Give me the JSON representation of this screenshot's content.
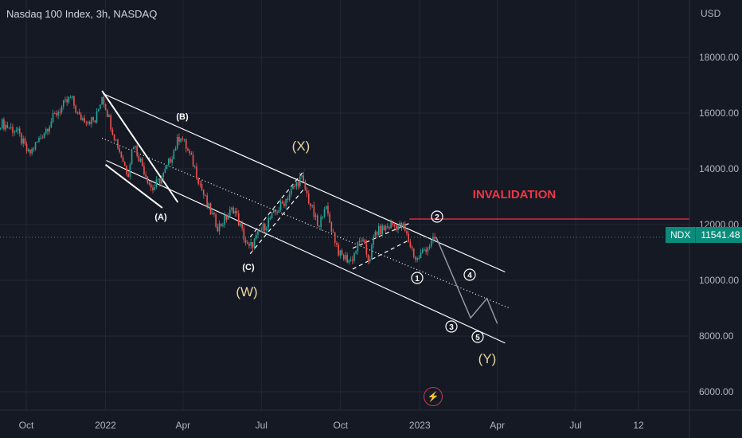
{
  "header": {
    "title": "Nasdaq 100 Index, 3h, NASDAQ",
    "currency": "USD"
  },
  "price_tag": {
    "symbol": "NDX",
    "value": "11541.48"
  },
  "colors": {
    "background": "#151924",
    "up": "#26a69a",
    "down": "#ef5350",
    "channel": "#ffffff",
    "invalidation": "#f23645",
    "wave_label_major": "#e6d3a0",
    "tag": "#0b8c7a"
  },
  "icons": {
    "bottom_badge": "lightning-icon"
  },
  "chart_data": {
    "type": "line",
    "title": "Nasdaq 100 Index, 3h, NASDAQ",
    "xlabel": "",
    "ylabel": "",
    "ylim": [
      5400,
      20400
    ],
    "grid": true,
    "y_ticks": [
      "6000.00",
      "8000.00",
      "10000.00",
      "12000.00",
      "14000.00",
      "16000.00",
      "18000.00"
    ],
    "x_ticks": [
      {
        "label": "Oct",
        "x": "2021-10-01"
      },
      {
        "label": "2022",
        "x": "2022-01-01"
      },
      {
        "label": "Apr",
        "x": "2022-04-01"
      },
      {
        "label": "Jul",
        "x": "2022-07-01"
      },
      {
        "label": "Oct",
        "x": "2022-10-01"
      },
      {
        "label": "2023",
        "x": "2023-01-01"
      },
      {
        "label": "Apr",
        "x": "2023-04-01"
      },
      {
        "label": "Jul",
        "x": "2023-07-01"
      },
      {
        "label": "12",
        "x": "2023-09-12"
      }
    ],
    "series": [
      {
        "points": [
          [
            "2021-09-01",
            15650
          ],
          [
            "2021-09-20",
            15350
          ],
          [
            "2021-10-04",
            14500
          ],
          [
            "2021-10-20",
            15250
          ],
          [
            "2021-11-05",
            16000
          ],
          [
            "2021-11-22",
            16550
          ],
          [
            "2021-12-01",
            15850
          ],
          [
            "2021-12-20",
            15700
          ],
          [
            "2021-12-28",
            16650
          ],
          [
            "2022-01-10",
            15300
          ],
          [
            "2022-01-27",
            13800
          ],
          [
            "2022-02-02",
            14950
          ],
          [
            "2022-02-24",
            13250
          ],
          [
            "2022-03-10",
            13800
          ],
          [
            "2022-03-29",
            15250
          ],
          [
            "2022-04-14",
            14100
          ],
          [
            "2022-04-29",
            12700
          ],
          [
            "2022-05-12",
            11900
          ],
          [
            "2022-05-30",
            12600
          ],
          [
            "2022-06-16",
            11100
          ],
          [
            "2022-07-08",
            12100
          ],
          [
            "2022-07-27",
            12800
          ],
          [
            "2022-08-16",
            13700
          ],
          [
            "2022-09-06",
            11800
          ],
          [
            "2022-09-12",
            12750
          ],
          [
            "2022-09-30",
            10900
          ],
          [
            "2022-10-13",
            10700
          ],
          [
            "2022-10-25",
            11500
          ],
          [
            "2022-11-03",
            10700
          ],
          [
            "2022-11-10",
            11700
          ],
          [
            "2022-11-30",
            12000
          ],
          [
            "2022-12-13",
            11900
          ],
          [
            "2022-12-28",
            10700
          ],
          [
            "2023-01-06",
            11100
          ],
          [
            "2023-01-20",
            11500
          ]
        ]
      }
    ],
    "projection": [
      [
        "2023-01-20",
        11550
      ],
      [
        "2023-03-01",
        8650
      ],
      [
        "2023-03-20",
        9350
      ],
      [
        "2023-04-01",
        8450
      ]
    ],
    "invalidation_level": 12200,
    "last_price": 11541.48,
    "annotations": [
      {
        "text": "INVALIDATION"
      },
      {
        "text": "(A)"
      },
      {
        "text": "(B)"
      },
      {
        "text": "(C)"
      },
      {
        "text": "(W)"
      },
      {
        "text": "(X)"
      },
      {
        "text": "(Y)"
      },
      {
        "text": "1"
      },
      {
        "text": "2"
      },
      {
        "text": "3"
      },
      {
        "text": "4"
      },
      {
        "text": "5"
      }
    ]
  }
}
